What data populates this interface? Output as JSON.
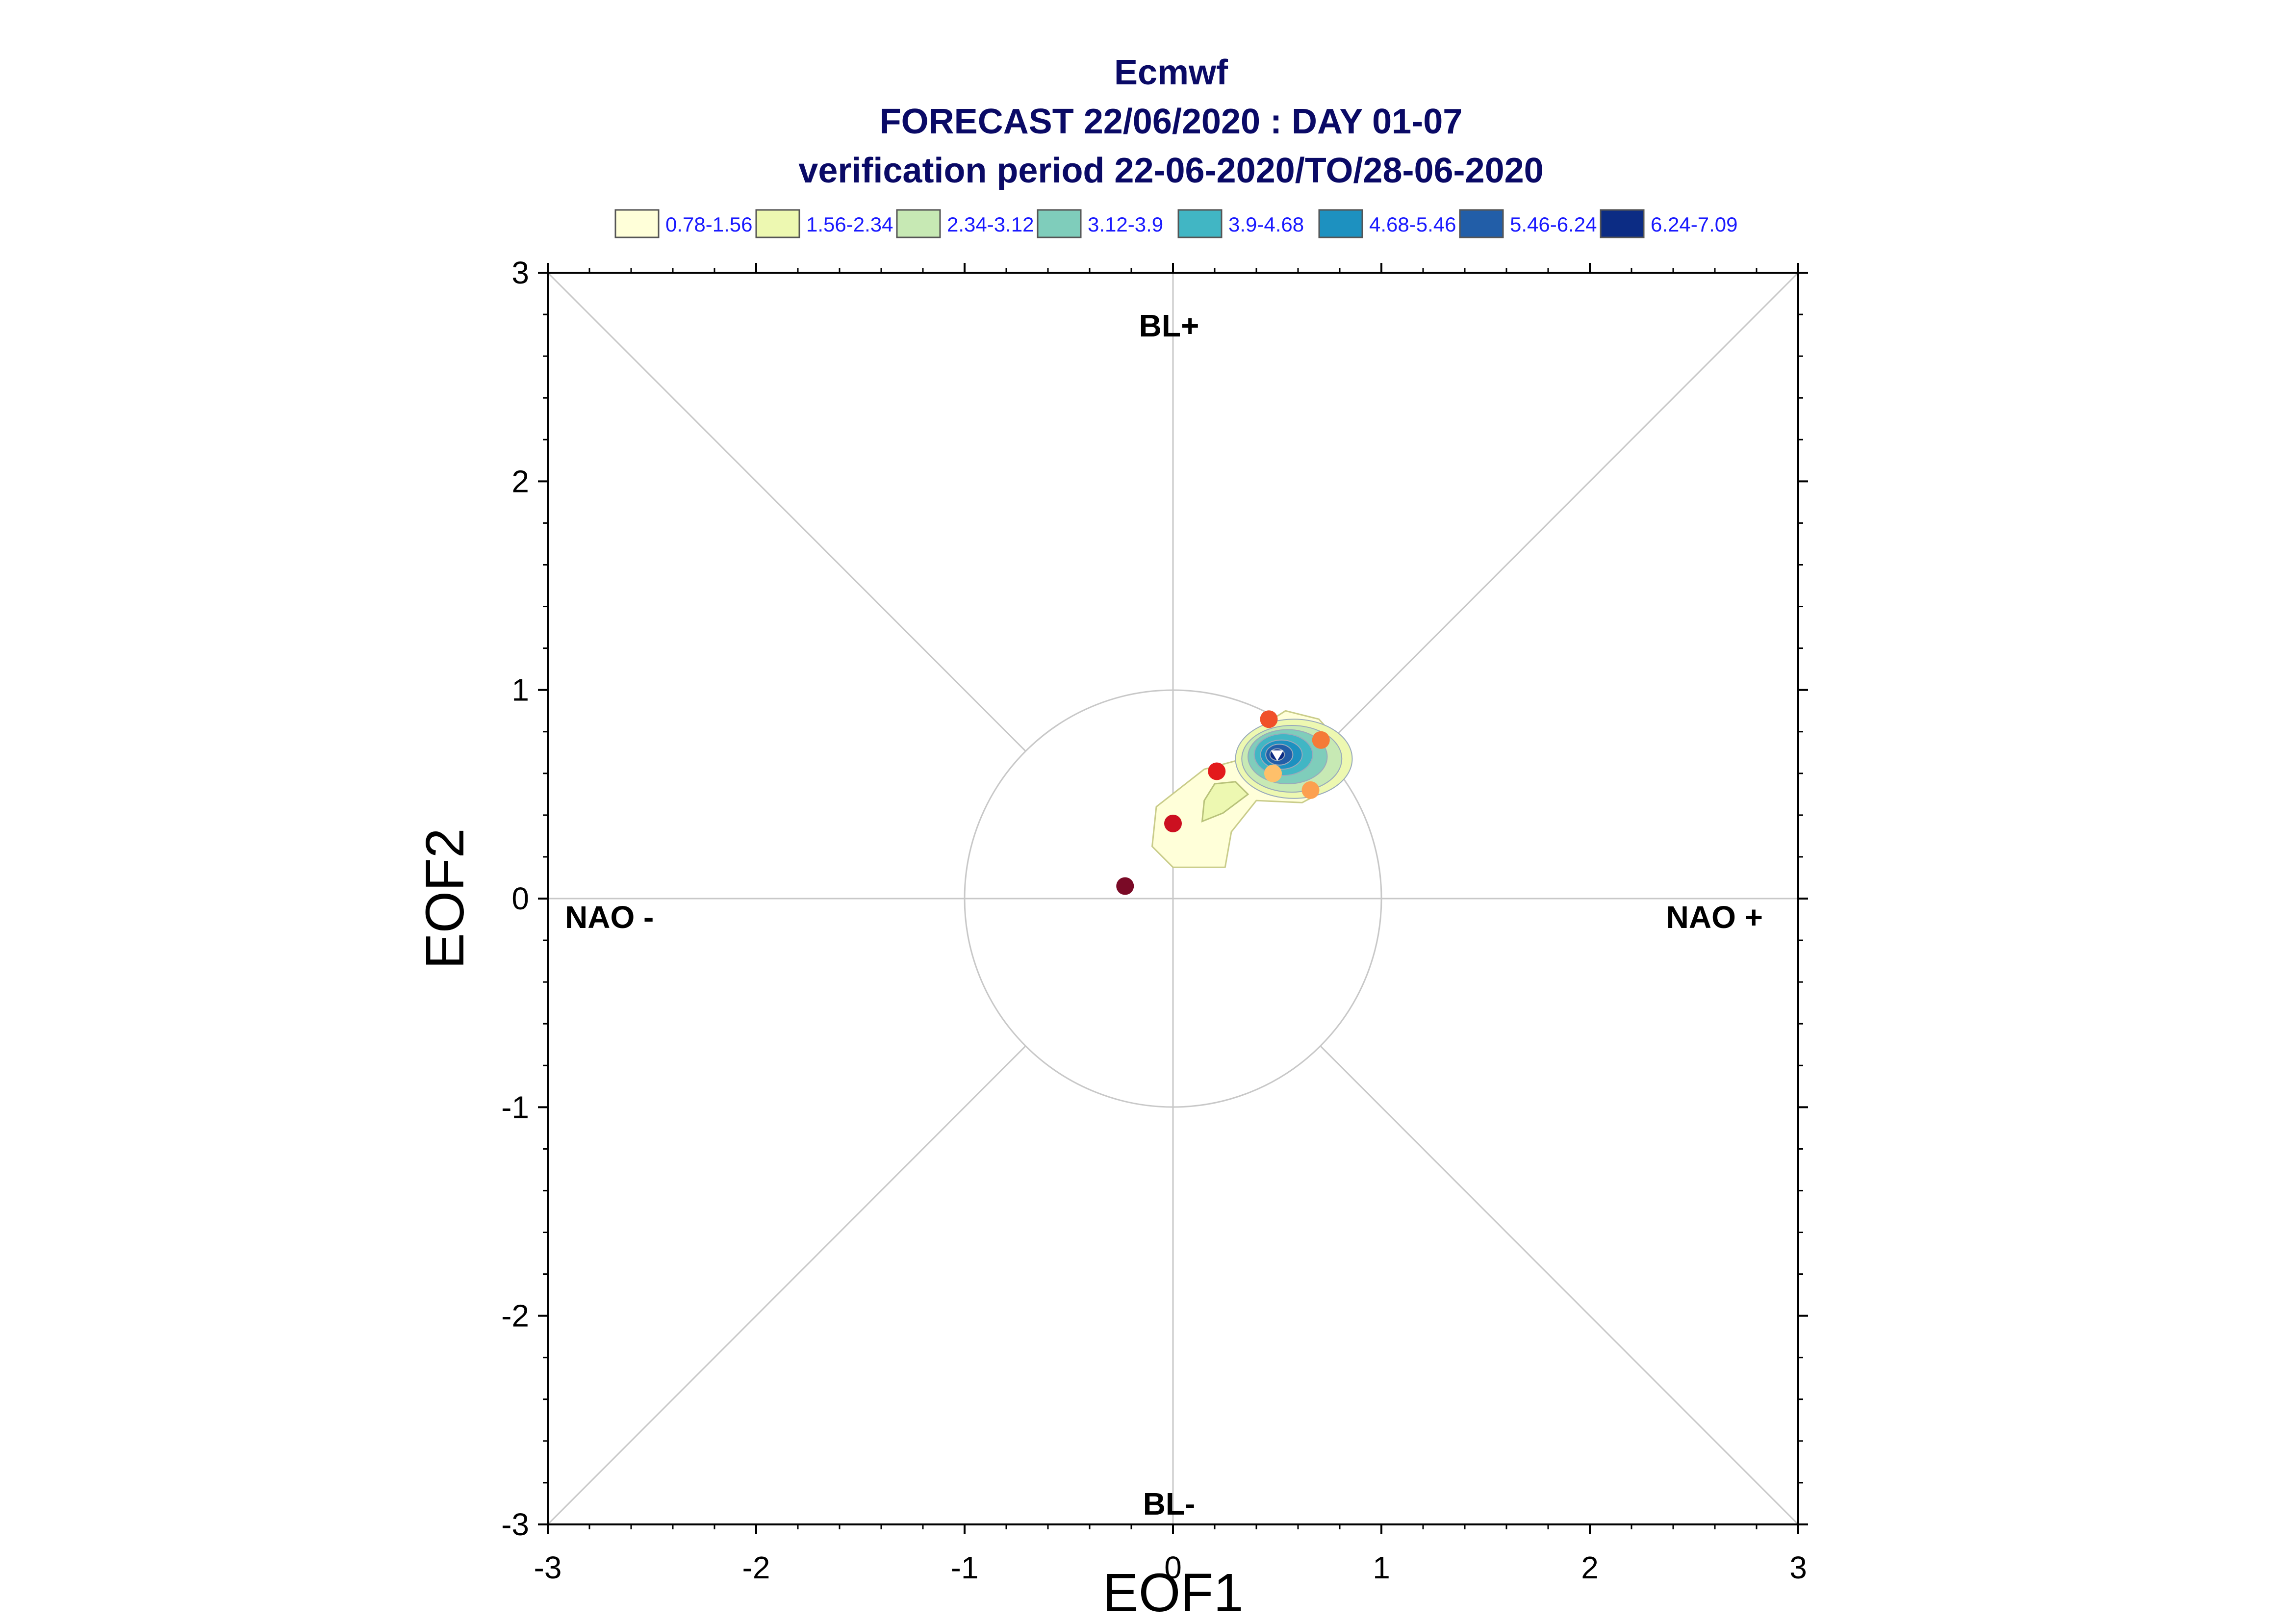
{
  "chart_data": {
    "type": "scatter",
    "title_lines": [
      "Ecmwf",
      "FORECAST 22/06/2020 : DAY 01-07",
      "verification period 22-06-2020/TO/28-06-2020"
    ],
    "xlabel": "EOF1",
    "ylabel": "EOF2",
    "xlim": [
      -3,
      3
    ],
    "ylim": [
      -3,
      3
    ],
    "x_ticks": [
      "-3",
      "-2",
      "-1",
      "0",
      "1",
      "2",
      "3"
    ],
    "y_ticks": [
      "-3",
      "-2",
      "-1",
      "0",
      "1",
      "2",
      "3"
    ],
    "regime_labels": {
      "top": "BL+",
      "bottom": "BL-",
      "left": "NAO -",
      "right": "NAO +"
    },
    "unit_circle_radius": 1,
    "legend": {
      "placement": "top",
      "entries": [
        {
          "label": "0.78-1.56",
          "color": "#ffffd9"
        },
        {
          "label": "1.56-2.34",
          "color": "#edf8b1"
        },
        {
          "label": "2.34-3.12",
          "color": "#c7e9b4"
        },
        {
          "label": "3.12-3.9",
          "color": "#7fcdbb"
        },
        {
          "label": "3.9-4.68",
          "color": "#41b6c4"
        },
        {
          "label": "4.68-5.46",
          "color": "#1d91c0"
        },
        {
          "label": "5.46-6.24",
          "color": "#225ea8"
        },
        {
          "label": "6.24-7.09",
          "color": "#0c2c84"
        }
      ]
    },
    "density_peak": {
      "x": 0.5,
      "y": 0.69
    },
    "points": [
      {
        "day": 1,
        "x": -0.23,
        "y": 0.06,
        "color": "#7a0a26"
      },
      {
        "day": 2,
        "x": 0.0,
        "y": 0.36,
        "color": "#cc1020"
      },
      {
        "day": 3,
        "x": 0.21,
        "y": 0.61,
        "color": "#e31a1c"
      },
      {
        "day": 4,
        "x": 0.46,
        "y": 0.86,
        "color": "#f0502a"
      },
      {
        "day": 5,
        "x": 0.71,
        "y": 0.76,
        "color": "#f57a38"
      },
      {
        "day": 6,
        "x": 0.66,
        "y": 0.52,
        "color": "#fca050"
      },
      {
        "day": 7,
        "x": 0.48,
        "y": 0.6,
        "color": "#fec06a"
      }
    ]
  }
}
